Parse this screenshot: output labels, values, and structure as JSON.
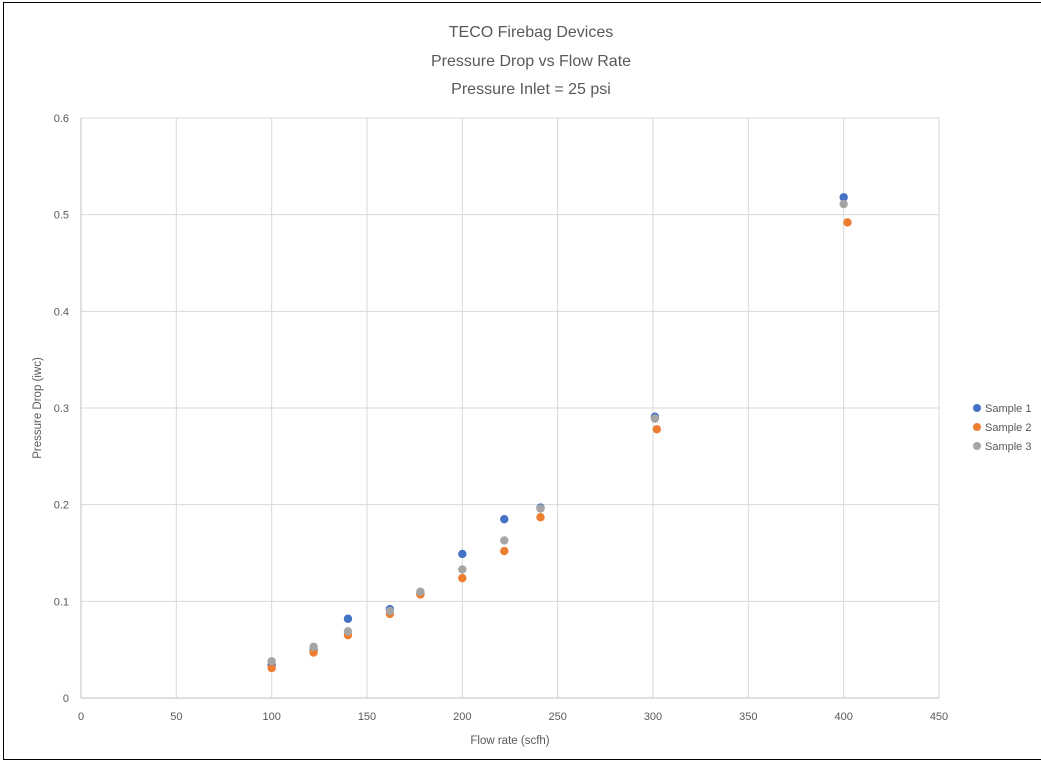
{
  "chart_data": {
    "type": "scatter",
    "title_lines": [
      "TECO Firebag Devices",
      "Pressure Drop vs Flow Rate",
      "Pressure Inlet = 25 psi"
    ],
    "xlabel": "Flow rate (scfh)",
    "ylabel": "Pressure Drop (iwc)",
    "xlim": [
      0,
      450
    ],
    "ylim": [
      0,
      0.6
    ],
    "xticks": [
      0,
      50,
      100,
      150,
      200,
      250,
      300,
      350,
      400,
      450
    ],
    "yticks": [
      0,
      0.1,
      0.2,
      0.3,
      0.4,
      0.5,
      0.6
    ],
    "xtick_labels": [
      "0",
      "50",
      "100",
      "150",
      "200",
      "250",
      "300",
      "350",
      "400",
      "450"
    ],
    "ytick_labels": [
      "0",
      "0.1",
      "0.2",
      "0.3",
      "0.4",
      "0.5",
      "0.6"
    ],
    "grid": true,
    "legend_position": "right",
    "series": [
      {
        "name": "Sample 1",
        "color": "#4472C4",
        "x": [
          100,
          122,
          140,
          162,
          178,
          200,
          222,
          241,
          301,
          400
        ],
        "y": [
          0.034,
          0.05,
          0.082,
          0.092,
          0.108,
          0.149,
          0.185,
          0.197,
          0.291,
          0.518
        ]
      },
      {
        "name": "Sample 2",
        "color": "#ED7D31",
        "x": [
          100,
          122,
          140,
          162,
          178,
          200,
          222,
          241,
          302,
          402
        ],
        "y": [
          0.031,
          0.047,
          0.065,
          0.087,
          0.107,
          0.124,
          0.152,
          0.187,
          0.278,
          0.492
        ]
      },
      {
        "name": "Sample 3",
        "color": "#A5A5A5",
        "x": [
          100,
          122,
          140,
          162,
          178,
          200,
          222,
          241,
          301,
          400
        ],
        "y": [
          0.038,
          0.053,
          0.069,
          0.09,
          0.11,
          0.133,
          0.163,
          0.196,
          0.289,
          0.511
        ]
      }
    ]
  }
}
